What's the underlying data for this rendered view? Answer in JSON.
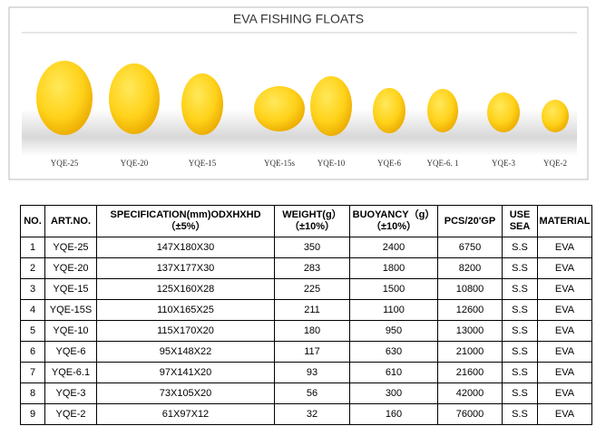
{
  "panel": {
    "title": "EVA FISHING FLOATS",
    "floats": [
      "YQE-25",
      "YQE-20",
      "YQE-15",
      "YQE-15s",
      "YQE-10",
      "YQE-6",
      "YQE-6. 1",
      "YQE-3",
      "YQE-2"
    ]
  },
  "table": {
    "header": [
      [
        "NO."
      ],
      [
        "ART.NO."
      ],
      [
        "SPECIFICATION(mm)ODXHXHD",
        "（±5%）"
      ],
      [
        "WEIGHT(g）",
        "（±10%）"
      ],
      [
        "BUOYANCY（g）",
        "（±10%）"
      ],
      [
        "PCS/20'GP"
      ],
      [
        "USE",
        "SEA"
      ],
      [
        "MATERIAL"
      ]
    ],
    "rows": [
      [
        "1",
        "YQE-25",
        "147X180X30",
        "350",
        "2400",
        "6750",
        "S.S",
        "EVA"
      ],
      [
        "2",
        "YQE-20",
        "137X177X30",
        "283",
        "1800",
        "8200",
        "S.S",
        "EVA"
      ],
      [
        "3",
        "YQE-15",
        "125X160X28",
        "225",
        "1500",
        "10800",
        "S.S",
        "EVA"
      ],
      [
        "4",
        "YQE-15S",
        "110X165X25",
        "211",
        "1100",
        "12600",
        "S.S",
        "EVA"
      ],
      [
        "5",
        "YQE-10",
        "115X170X20",
        "180",
        "950",
        "13000",
        "S.S",
        "EVA"
      ],
      [
        "6",
        "YQE-6",
        "95X148X22",
        "117",
        "630",
        "21000",
        "S.S",
        "EVA"
      ],
      [
        "7",
        "YQE-6.1",
        "97X141X20",
        "93",
        "610",
        "21600",
        "S.S",
        "EVA"
      ],
      [
        "8",
        "YQE-3",
        "73X105X20",
        "56",
        "300",
        "42000",
        "S.S",
        "EVA"
      ],
      [
        "9",
        "YQE-2",
        "61X97X12",
        "32",
        "160",
        "76000",
        "S.S",
        "EVA"
      ]
    ]
  }
}
